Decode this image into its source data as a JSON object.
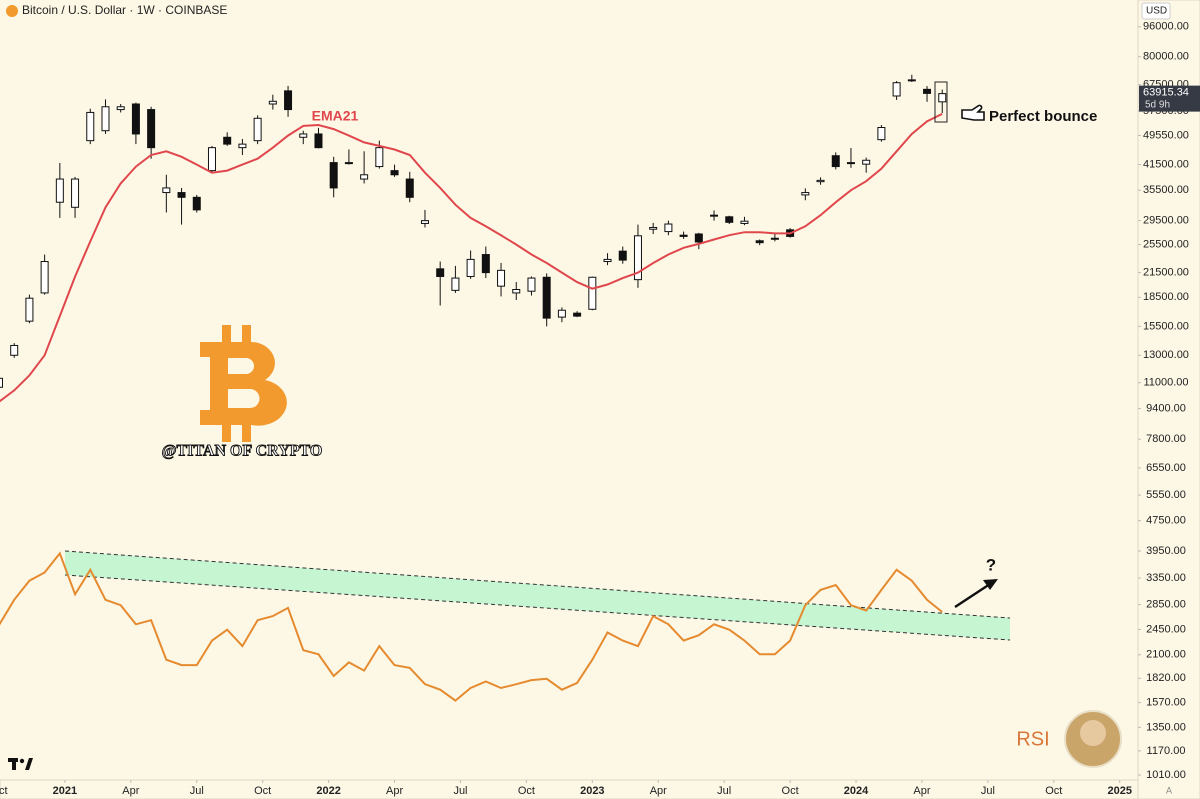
{
  "chart_data": {
    "type": "candlestick",
    "title": "Bitcoin / U.S. Dollar · 1W · COINBASE",
    "currency": "USD",
    "log_scale": true,
    "grid": false,
    "xlim": [
      -12.8,
      211.6
    ],
    "ylim": [
      980,
      113000
    ],
    "xticks": [
      {
        "value": -13,
        "label": "Oct"
      },
      {
        "value": 0,
        "label": "2021"
      },
      {
        "value": 13,
        "label": "Apr"
      },
      {
        "value": 26,
        "label": "Jul"
      },
      {
        "value": 39,
        "label": "Oct"
      },
      {
        "value": 52,
        "label": "2022"
      },
      {
        "value": 65,
        "label": "Apr"
      },
      {
        "value": 78,
        "label": "Jul"
      },
      {
        "value": 91,
        "label": "Oct"
      },
      {
        "value": 104,
        "label": "2023"
      },
      {
        "value": 117,
        "label": "Apr"
      },
      {
        "value": 130,
        "label": "Jul"
      },
      {
        "value": 143,
        "label": "Oct"
      },
      {
        "value": 156,
        "label": "2024"
      },
      {
        "value": 169,
        "label": "Apr"
      },
      {
        "value": 182,
        "label": "Jul"
      },
      {
        "value": 195,
        "label": "Oct"
      },
      {
        "value": 208,
        "label": "2025"
      }
    ],
    "yticks": [
      {
        "value": 96000,
        "label": "96000.00"
      },
      {
        "value": 80000,
        "label": "80000.00"
      },
      {
        "value": 67500,
        "label": "67500.00"
      },
      {
        "value": 57500,
        "label": "57500.00"
      },
      {
        "value": 49550,
        "label": "49550.00"
      },
      {
        "value": 41500,
        "label": "41500.00"
      },
      {
        "value": 35500,
        "label": "35500.00"
      },
      {
        "value": 29500,
        "label": "29500.00"
      },
      {
        "value": 25500,
        "label": "25500.00"
      },
      {
        "value": 21500,
        "label": "21500.00"
      },
      {
        "value": 18500,
        "label": "18500.00"
      },
      {
        "value": 15500,
        "label": "15500.00"
      },
      {
        "value": 13000,
        "label": "13000.00"
      },
      {
        "value": 11000,
        "label": "11000.00"
      },
      {
        "value": 9400,
        "label": "9400.00"
      },
      {
        "value": 7800,
        "label": "7800.00"
      },
      {
        "value": 6550,
        "label": "6550.00"
      },
      {
        "value": 5550,
        "label": "5550.00"
      },
      {
        "value": 4750,
        "label": "4750.00"
      },
      {
        "value": 3950,
        "label": "3950.00"
      },
      {
        "value": 3350,
        "label": "3350.00"
      },
      {
        "value": 2850,
        "label": "2850.00"
      },
      {
        "value": 2450,
        "label": "2450.00"
      },
      {
        "value": 2100,
        "label": "2100.00"
      },
      {
        "value": 1820,
        "label": "1820.00"
      },
      {
        "value": 1570,
        "label": "1570.00"
      },
      {
        "value": 1350,
        "label": "1350.00"
      },
      {
        "value": 1170,
        "label": "1170.00"
      },
      {
        "value": 1010,
        "label": "1010.00"
      }
    ],
    "x": [
      -13,
      -10,
      -7,
      -4,
      -1,
      2,
      5,
      8,
      11,
      14,
      17,
      20,
      23,
      26,
      29,
      32,
      35,
      38,
      41,
      44,
      47,
      50,
      53,
      56,
      59,
      62,
      65,
      68,
      71,
      74,
      77,
      80,
      83,
      86,
      89,
      92,
      95,
      98,
      101,
      104,
      107,
      110,
      113,
      116,
      119,
      122,
      125,
      128,
      131,
      134,
      137,
      140,
      143,
      146,
      149,
      152,
      155,
      158,
      161,
      164,
      167,
      170,
      173
    ],
    "open": [
      10700,
      13000,
      16000,
      19000,
      33000,
      32000,
      48000,
      51000,
      58000,
      60000,
      58000,
      35000,
      35000,
      34000,
      40000,
      49000,
      46000,
      48000,
      60000,
      65000,
      49000,
      50000,
      42000,
      42000,
      38000,
      41000,
      40000,
      38000,
      29000,
      22000,
      19300,
      21000,
      24000,
      19800,
      19000,
      19200,
      20900,
      16400,
      16800,
      17200,
      23000,
      24500,
      20600,
      28000,
      27600,
      27000,
      27200,
      30500,
      30200,
      29000,
      26100,
      26500,
      27900,
      34500,
      37400,
      43800,
      42000,
      41600,
      48300,
      63000,
      69500,
      65600,
      60800
    ],
    "high": [
      11700,
      14000,
      18800,
      24000,
      41900,
      38500,
      58300,
      61700,
      60000,
      60500,
      59000,
      39000,
      36000,
      34500,
      46500,
      50500,
      48500,
      56000,
      63500,
      67000,
      51000,
      51900,
      43500,
      45500,
      45000,
      48000,
      41500,
      39700,
      31500,
      23000,
      22400,
      24600,
      25200,
      22800,
      20300,
      21000,
      21400,
      17400,
      17000,
      21000,
      24200,
      25200,
      28800,
      29100,
      29500,
      27600,
      27400,
      31400,
      30400,
      30200,
      26300,
      27300,
      28200,
      35900,
      38400,
      44700,
      45900,
      43300,
      52800,
      69000,
      71700,
      66900,
      65500
    ],
    "low": [
      10500,
      12800,
      15800,
      18800,
      30000,
      30000,
      47000,
      50000,
      57000,
      47000,
      43000,
      31000,
      28800,
      31000,
      39500,
      46500,
      44000,
      47000,
      58000,
      55500,
      47000,
      45800,
      34000,
      41500,
      37000,
      40500,
      38500,
      33000,
      28300,
      17600,
      19000,
      20700,
      20800,
      18600,
      18200,
      18700,
      15500,
      15900,
      16400,
      17100,
      22500,
      22700,
      19600,
      27200,
      27000,
      26400,
      24800,
      29500,
      28900,
      28700,
      25400,
      26000,
      26600,
      33400,
      36700,
      40300,
      40700,
      39500,
      47700,
      61500,
      68600,
      60800,
      56800
    ],
    "close": [
      11300,
      13800,
      18400,
      23000,
      38000,
      38000,
      57000,
      59000,
      59000,
      50000,
      46000,
      36000,
      34000,
      31500,
      46000,
      47000,
      47000,
      55000,
      61000,
      58000,
      50000,
      46000,
      36000,
      42000,
      39000,
      46000,
      39000,
      34000,
      29500,
      21000,
      20800,
      23300,
      21500,
      21800,
      19400,
      20800,
      16300,
      17100,
      16500,
      20900,
      23300,
      23200,
      26900,
      28300,
      28900,
      26800,
      25900,
      30500,
      29200,
      29400,
      25800,
      26500,
      26800,
      35000,
      37700,
      41000,
      42000,
      42600,
      52000,
      68300,
      69300,
      64000,
      63915.34
    ],
    "series": [
      {
        "name": "EMA21",
        "color": "#e0474c",
        "values": [
          9800,
          10500,
          11500,
          13000,
          16500,
          21000,
          26000,
          32000,
          37000,
          41000,
          44000,
          45000,
          43500,
          41500,
          39500,
          40000,
          41500,
          43000,
          46000,
          49500,
          52500,
          52800,
          51500,
          49500,
          47500,
          46500,
          45500,
          44000,
          39500,
          36000,
          32500,
          30000,
          28500,
          27000,
          25500,
          24000,
          22800,
          21500,
          20300,
          19500,
          20000,
          20800,
          21500,
          22800,
          24000,
          25000,
          25600,
          26300,
          27000,
          27500,
          27500,
          27300,
          27300,
          28500,
          30500,
          33000,
          35500,
          37500,
          40500,
          45000,
          50000,
          54000,
          56500
        ]
      }
    ],
    "rsi": {
      "name": "RSI",
      "color": "#e58a2e",
      "ylim": [
        20,
        100
      ],
      "values": [
        60.7,
        70,
        77,
        80,
        87,
        72,
        81,
        70,
        68,
        61,
        62.5,
        48,
        46,
        46,
        55,
        59,
        53,
        62.5,
        64,
        67,
        51.5,
        50,
        42,
        47,
        44,
        53,
        46,
        45,
        39,
        37,
        33,
        37.6,
        40,
        37.6,
        39,
        40.5,
        41,
        37,
        39.5,
        48,
        58,
        55,
        53,
        64,
        61,
        55,
        57,
        61,
        59,
        55,
        50,
        50,
        55,
        68,
        73.6,
        75.4,
        68,
        66,
        73.6,
        81,
        77,
        70,
        65.5
      ]
    },
    "annotations": {
      "bounce": "Perfect bounce",
      "watermark": "@TITAN OF CRYPTO",
      "question": "?",
      "countdown": "5d 9h"
    }
  }
}
